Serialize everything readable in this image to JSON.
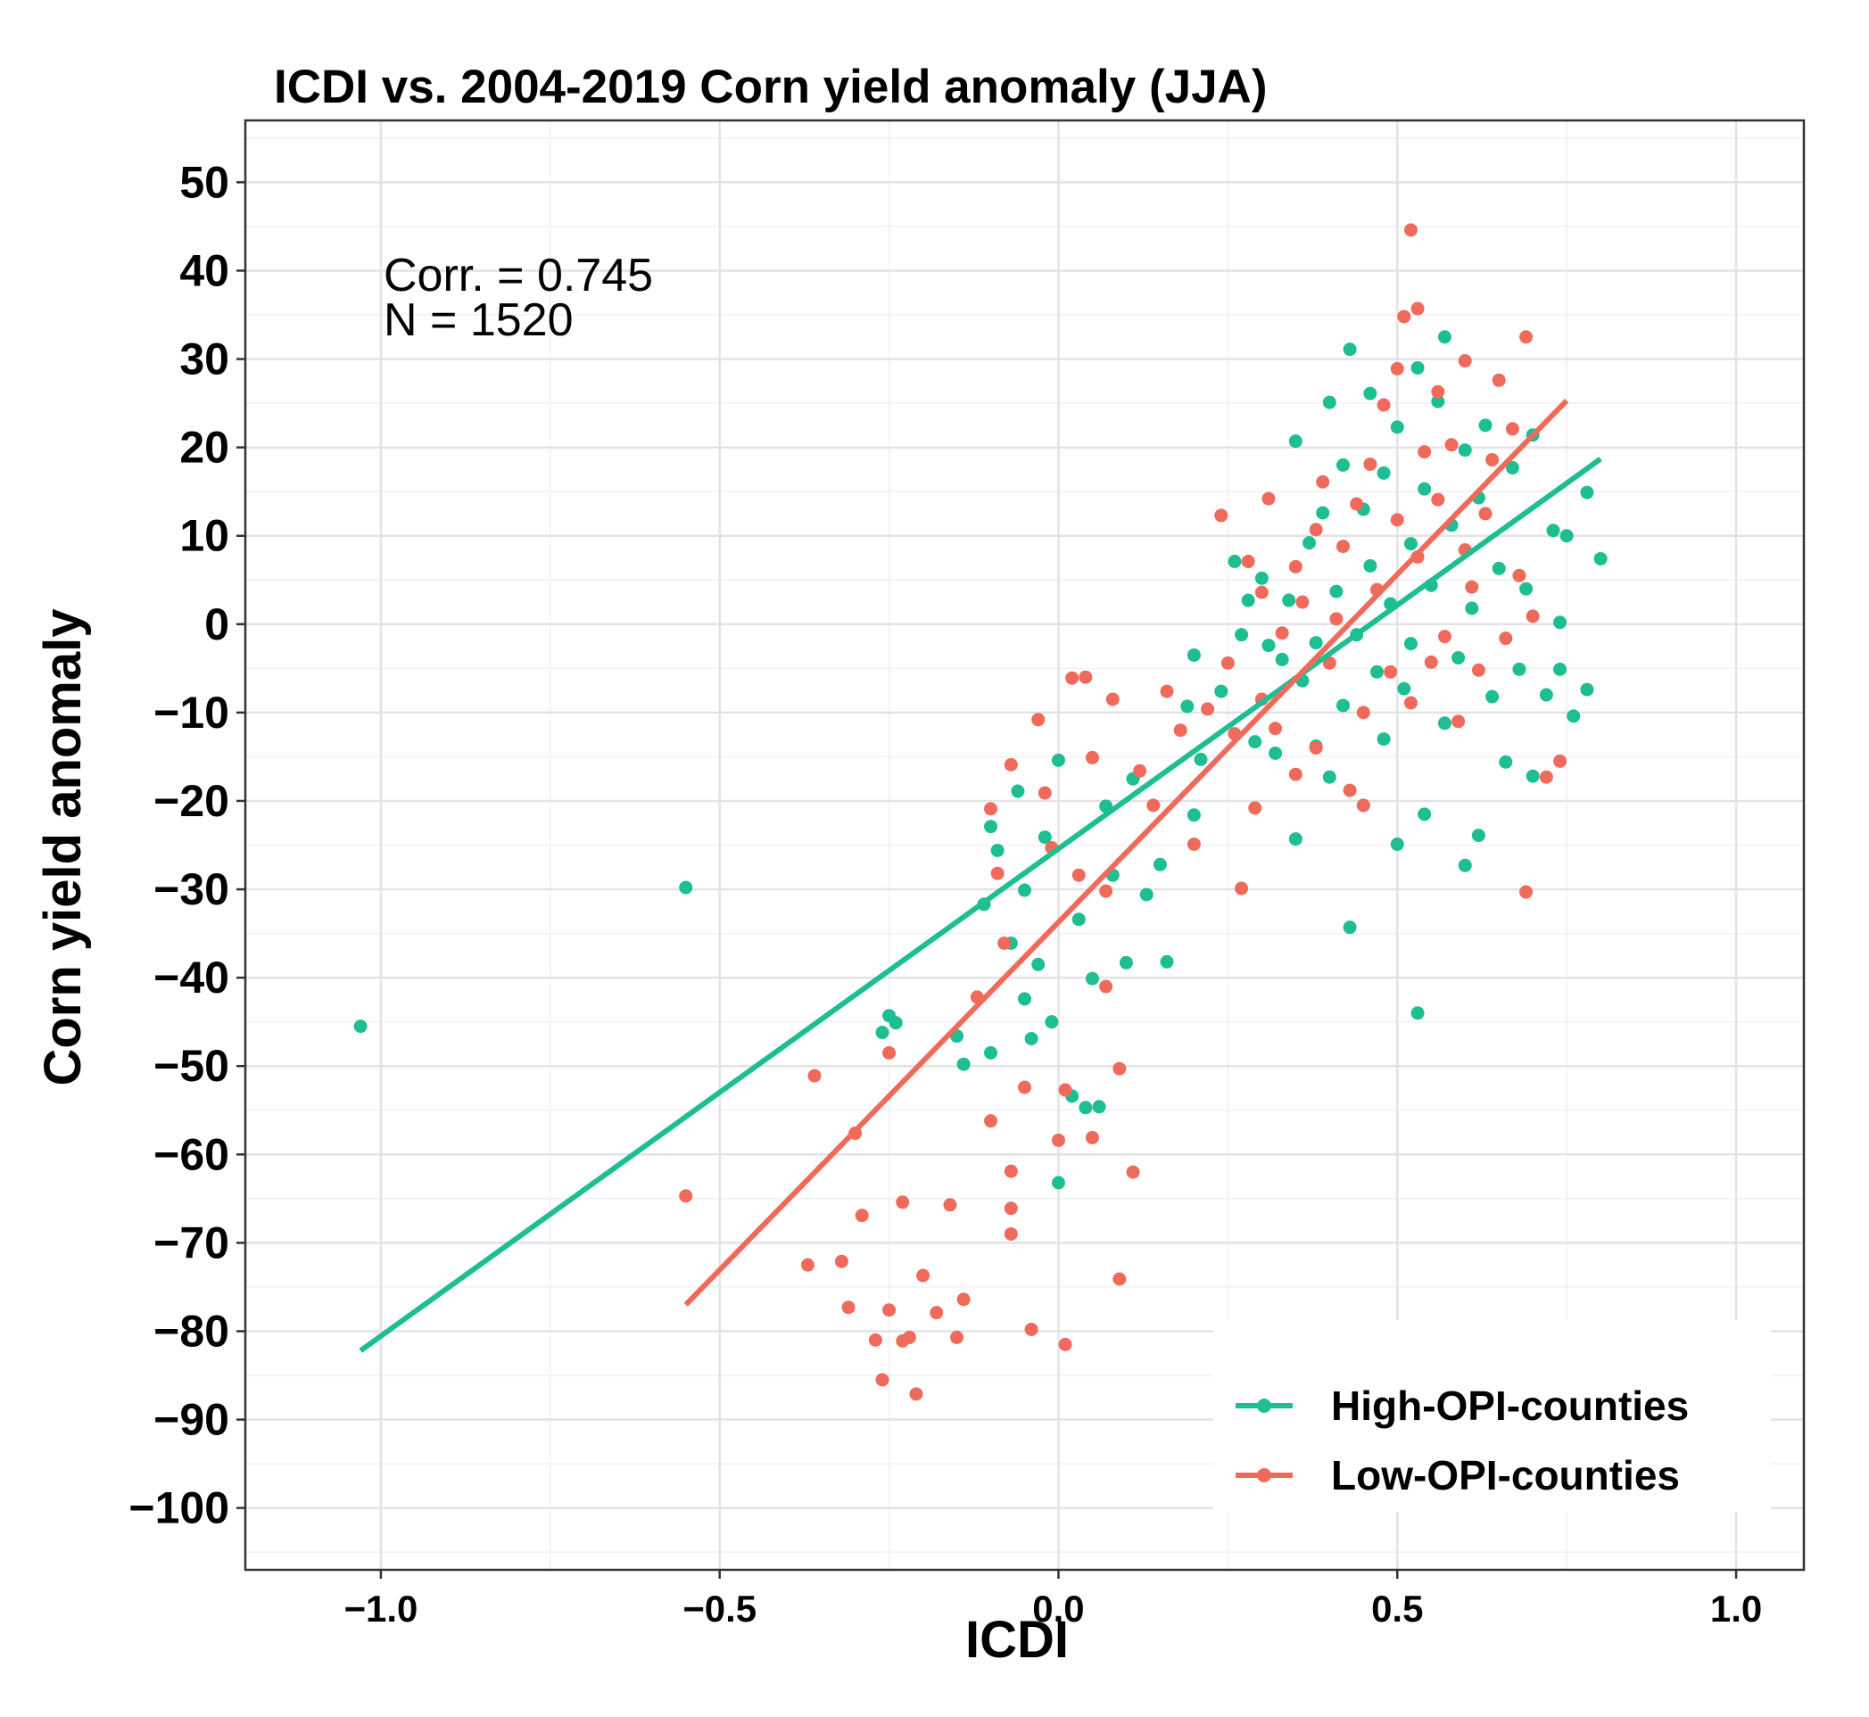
{
  "chart_data": {
    "type": "scatter",
    "title": "ICDI vs. 2004-2019 Corn yield anomaly (JJA)",
    "xlabel": "ICDI",
    "ylabel": "Corn yield anomaly",
    "xlim": [
      -1.2,
      1.1
    ],
    "ylim": [
      -107,
      57
    ],
    "x_ticks": [
      -1.0,
      -0.5,
      0.0,
      0.5,
      1.0
    ],
    "x_tick_labels": [
      "−1.0",
      "−0.5",
      "0.0",
      "0.5",
      "1.0"
    ],
    "y_ticks": [
      50,
      40,
      30,
      20,
      10,
      0,
      -10,
      -20,
      -30,
      -40,
      -50,
      -60,
      -70,
      -80,
      -90,
      -100
    ],
    "y_tick_labels": [
      "50",
      "40",
      "30",
      "20",
      "10",
      "0",
      "−10",
      "−20",
      "−30",
      "−40",
      "−50",
      "−60",
      "−70",
      "−80",
      "−90",
      "−100"
    ],
    "grid": true,
    "legend_position": "bottom-right",
    "annotations": {
      "corr": "Corr. = 0.745",
      "n": "N = 1520"
    },
    "series": [
      {
        "name": "High-OPI-counties",
        "color": "#1CBE92",
        "fit_line": {
          "x": [
            -1.03,
            0.8
          ],
          "y": [
            -82.2,
            18.7
          ]
        },
        "points": [
          [
            -1.03,
            -45.5
          ],
          [
            -0.55,
            -29.8
          ],
          [
            -0.26,
            -46.2
          ],
          [
            -0.25,
            -44.3
          ],
          [
            -0.24,
            -45.1
          ],
          [
            -0.15,
            -46.6
          ],
          [
            -0.14,
            -49.8
          ],
          [
            -0.11,
            -31.7
          ],
          [
            -0.1,
            -48.5
          ],
          [
            -0.1,
            -22.9
          ],
          [
            -0.09,
            -25.6
          ],
          [
            -0.07,
            -36.1
          ],
          [
            -0.06,
            -18.9
          ],
          [
            -0.05,
            -42.4
          ],
          [
            -0.05,
            -30.1
          ],
          [
            -0.04,
            -46.9
          ],
          [
            -0.03,
            -38.5
          ],
          [
            -0.02,
            -24.1
          ],
          [
            -0.01,
            -45.0
          ],
          [
            0.0,
            -63.2
          ],
          [
            0.0,
            -15.4
          ],
          [
            0.02,
            -53.4
          ],
          [
            0.03,
            -33.4
          ],
          [
            0.04,
            -54.7
          ],
          [
            0.05,
            -40.1
          ],
          [
            0.06,
            -54.6
          ],
          [
            0.07,
            -20.6
          ],
          [
            0.08,
            -28.4
          ],
          [
            0.1,
            -38.3
          ],
          [
            0.11,
            -17.5
          ],
          [
            0.13,
            -30.6
          ],
          [
            0.15,
            -27.2
          ],
          [
            0.16,
            -38.2
          ],
          [
            0.19,
            -9.3
          ],
          [
            0.2,
            -21.6
          ],
          [
            0.2,
            -3.5
          ],
          [
            0.21,
            -15.3
          ],
          [
            0.24,
            -7.6
          ],
          [
            0.26,
            7.1
          ],
          [
            0.27,
            -1.2
          ],
          [
            0.28,
            2.7
          ],
          [
            0.29,
            -13.3
          ],
          [
            0.3,
            5.2
          ],
          [
            0.31,
            -2.4
          ],
          [
            0.32,
            -14.6
          ],
          [
            0.33,
            -4.0
          ],
          [
            0.34,
            2.7
          ],
          [
            0.35,
            -24.3
          ],
          [
            0.35,
            20.7
          ],
          [
            0.36,
            -6.4
          ],
          [
            0.37,
            9.2
          ],
          [
            0.38,
            -13.8
          ],
          [
            0.38,
            -2.1
          ],
          [
            0.39,
            12.6
          ],
          [
            0.4,
            -17.3
          ],
          [
            0.4,
            25.1
          ],
          [
            0.41,
            3.7
          ],
          [
            0.42,
            -9.2
          ],
          [
            0.42,
            18.0
          ],
          [
            0.43,
            31.1
          ],
          [
            0.43,
            -34.3
          ],
          [
            0.44,
            -1.2
          ],
          [
            0.45,
            13.0
          ],
          [
            0.45,
            -20.5
          ],
          [
            0.46,
            26.1
          ],
          [
            0.46,
            6.6
          ],
          [
            0.47,
            -5.4
          ],
          [
            0.48,
            17.1
          ],
          [
            0.48,
            -13.0
          ],
          [
            0.49,
            2.3
          ],
          [
            0.5,
            -24.9
          ],
          [
            0.5,
            22.3
          ],
          [
            0.51,
            -7.3
          ],
          [
            0.52,
            9.1
          ],
          [
            0.52,
            -2.2
          ],
          [
            0.53,
            29.0
          ],
          [
            0.53,
            -44.0
          ],
          [
            0.54,
            15.3
          ],
          [
            0.54,
            -21.5
          ],
          [
            0.55,
            4.4
          ],
          [
            0.56,
            25.2
          ],
          [
            0.57,
            -11.2
          ],
          [
            0.57,
            32.5
          ],
          [
            0.58,
            11.2
          ],
          [
            0.59,
            -3.8
          ],
          [
            0.6,
            -27.3
          ],
          [
            0.6,
            19.7
          ],
          [
            0.61,
            1.8
          ],
          [
            0.62,
            -23.9
          ],
          [
            0.62,
            14.3
          ],
          [
            0.63,
            22.5
          ],
          [
            0.64,
            -8.2
          ],
          [
            0.65,
            6.3
          ],
          [
            0.66,
            -15.6
          ],
          [
            0.67,
            17.7
          ],
          [
            0.68,
            -5.1
          ],
          [
            0.69,
            4.0
          ],
          [
            0.7,
            -17.2
          ],
          [
            0.7,
            21.4
          ],
          [
            0.72,
            -8.0
          ],
          [
            0.73,
            10.6
          ],
          [
            0.74,
            0.2
          ],
          [
            0.74,
            -5.1
          ],
          [
            0.75,
            10.0
          ],
          [
            0.76,
            -10.4
          ],
          [
            0.78,
            14.9
          ],
          [
            0.78,
            -7.4
          ],
          [
            0.8,
            7.4
          ]
        ]
      },
      {
        "name": "Low-OPI-counties",
        "color": "#F06A5C",
        "fit_line": {
          "x": [
            -0.55,
            0.75
          ],
          "y": [
            -77.0,
            25.3
          ]
        },
        "points": [
          [
            -0.55,
            -64.7
          ],
          [
            -0.37,
            -72.5
          ],
          [
            -0.36,
            -51.1
          ],
          [
            -0.32,
            -72.1
          ],
          [
            -0.31,
            -77.3
          ],
          [
            -0.3,
            -57.6
          ],
          [
            -0.29,
            -66.9
          ],
          [
            -0.27,
            -81.0
          ],
          [
            -0.26,
            -85.5
          ],
          [
            -0.25,
            -77.6
          ],
          [
            -0.25,
            -48.5
          ],
          [
            -0.23,
            -81.1
          ],
          [
            -0.23,
            -65.4
          ],
          [
            -0.22,
            -80.7
          ],
          [
            -0.21,
            -87.1
          ],
          [
            -0.2,
            -73.7
          ],
          [
            -0.18,
            -77.9
          ],
          [
            -0.16,
            -65.7
          ],
          [
            -0.15,
            -80.7
          ],
          [
            -0.14,
            -76.4
          ],
          [
            -0.12,
            -42.2
          ],
          [
            -0.1,
            -20.9
          ],
          [
            -0.1,
            -56.2
          ],
          [
            -0.09,
            -28.2
          ],
          [
            -0.08,
            -36.1
          ],
          [
            -0.07,
            -66.1
          ],
          [
            -0.07,
            -61.9
          ],
          [
            -0.07,
            -69.0
          ],
          [
            -0.07,
            -15.9
          ],
          [
            -0.05,
            -52.4
          ],
          [
            -0.04,
            -79.8
          ],
          [
            -0.03,
            -10.8
          ],
          [
            -0.02,
            -19.1
          ],
          [
            -0.01,
            -25.3
          ],
          [
            0.0,
            -58.4
          ],
          [
            0.01,
            -81.5
          ],
          [
            0.01,
            -52.7
          ],
          [
            0.02,
            -6.1
          ],
          [
            0.03,
            -28.4
          ],
          [
            0.04,
            -6.0
          ],
          [
            0.05,
            -58.1
          ],
          [
            0.05,
            -15.1
          ],
          [
            0.07,
            -30.2
          ],
          [
            0.07,
            -41.0
          ],
          [
            0.08,
            -8.5
          ],
          [
            0.09,
            -50.3
          ],
          [
            0.09,
            -74.1
          ],
          [
            0.11,
            -62.0
          ],
          [
            0.12,
            -16.6
          ],
          [
            0.14,
            -20.5
          ],
          [
            0.16,
            -7.6
          ],
          [
            0.18,
            -12.0
          ],
          [
            0.2,
            -24.9
          ],
          [
            0.22,
            -9.6
          ],
          [
            0.24,
            12.3
          ],
          [
            0.25,
            -4.4
          ],
          [
            0.26,
            -12.4
          ],
          [
            0.27,
            -29.9
          ],
          [
            0.28,
            7.1
          ],
          [
            0.29,
            -20.8
          ],
          [
            0.3,
            3.6
          ],
          [
            0.3,
            -8.5
          ],
          [
            0.31,
            14.2
          ],
          [
            0.32,
            -11.8
          ],
          [
            0.33,
            -1.0
          ],
          [
            0.35,
            -17.0
          ],
          [
            0.35,
            6.5
          ],
          [
            0.36,
            2.5
          ],
          [
            0.38,
            -14.0
          ],
          [
            0.38,
            10.7
          ],
          [
            0.39,
            16.1
          ],
          [
            0.4,
            -4.4
          ],
          [
            0.41,
            0.6
          ],
          [
            0.42,
            8.8
          ],
          [
            0.43,
            -18.8
          ],
          [
            0.44,
            13.6
          ],
          [
            0.45,
            -10.0
          ],
          [
            0.45,
            -20.5
          ],
          [
            0.46,
            18.1
          ],
          [
            0.47,
            3.9
          ],
          [
            0.48,
            24.8
          ],
          [
            0.49,
            -5.4
          ],
          [
            0.5,
            11.8
          ],
          [
            0.5,
            28.9
          ],
          [
            0.51,
            34.8
          ],
          [
            0.52,
            44.6
          ],
          [
            0.52,
            -8.9
          ],
          [
            0.53,
            7.6
          ],
          [
            0.53,
            35.7
          ],
          [
            0.54,
            19.5
          ],
          [
            0.55,
            -4.3
          ],
          [
            0.56,
            26.3
          ],
          [
            0.56,
            14.1
          ],
          [
            0.57,
            -1.4
          ],
          [
            0.58,
            20.3
          ],
          [
            0.59,
            -11.0
          ],
          [
            0.6,
            8.4
          ],
          [
            0.6,
            29.8
          ],
          [
            0.61,
            4.2
          ],
          [
            0.62,
            -5.2
          ],
          [
            0.63,
            12.5
          ],
          [
            0.64,
            18.6
          ],
          [
            0.65,
            27.6
          ],
          [
            0.66,
            -1.6
          ],
          [
            0.67,
            22.1
          ],
          [
            0.68,
            5.5
          ],
          [
            0.69,
            32.5
          ],
          [
            0.69,
            -30.3
          ],
          [
            0.7,
            0.9
          ],
          [
            0.72,
            -17.3
          ],
          [
            0.74,
            -15.5
          ]
        ]
      }
    ]
  }
}
